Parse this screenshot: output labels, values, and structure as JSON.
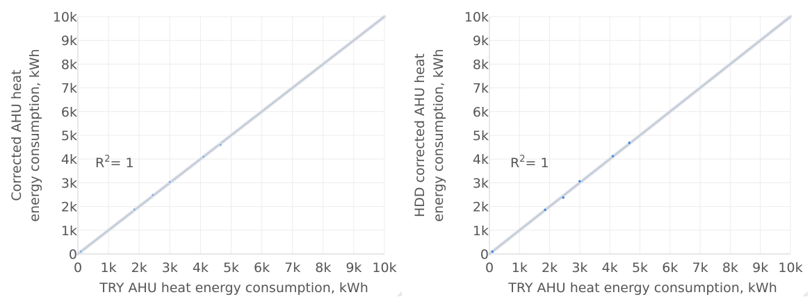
{
  "chart_data": [
    {
      "type": "scatter",
      "title": "",
      "xlabel": "TRY AHU heat energy consumption, kWh",
      "ylabel_lines": [
        "Corrected AHU heat",
        "energy consumption, kWh"
      ],
      "xlim": [
        0,
        10000
      ],
      "ylim": [
        0,
        10000
      ],
      "x_ticks": [
        "0",
        "1k",
        "2k",
        "3k",
        "4k",
        "5k",
        "6k",
        "7k",
        "8k",
        "9k",
        "10k"
      ],
      "y_ticks": [
        "0",
        "1k",
        "2k",
        "3k",
        "4k",
        "5k",
        "6k",
        "7k",
        "8k",
        "9k",
        "10k"
      ],
      "grid": true,
      "annotation": {
        "prefix": "R",
        "sup": "2",
        "suffix": "= 1"
      },
      "fit_line": {
        "x": [
          0,
          10000
        ],
        "y": [
          0,
          10000
        ]
      },
      "series": [
        {
          "points": [
            {
              "x": 100,
              "y": 100
            },
            {
              "x": 1850,
              "y": 1870
            },
            {
              "x": 2450,
              "y": 2480
            },
            {
              "x": 3000,
              "y": 3030
            },
            {
              "x": 4100,
              "y": 4100
            },
            {
              "x": 4650,
              "y": 4600
            }
          ],
          "color": "#8fb4e3"
        }
      ]
    },
    {
      "type": "scatter",
      "title": "",
      "xlabel": "TRY AHU heat energy consumption, kWh",
      "ylabel_lines": [
        "HDD corrected AHU heat",
        "energy consumption, kWh"
      ],
      "xlim": [
        0,
        10000
      ],
      "ylim": [
        0,
        10000
      ],
      "x_ticks": [
        "0",
        "1k",
        "2k",
        "3k",
        "4k",
        "5k",
        "6k",
        "7k",
        "8k",
        "9k",
        "10k"
      ],
      "y_ticks": [
        "0",
        "1k",
        "2k",
        "3k",
        "4k",
        "5k",
        "6k",
        "7k",
        "8k",
        "9k",
        "10k"
      ],
      "grid": true,
      "annotation": {
        "prefix": "R",
        "sup": "2",
        "suffix": "= 1"
      },
      "fit_line": {
        "x": [
          0,
          10000
        ],
        "y": [
          0,
          10000
        ]
      },
      "series": [
        {
          "points": [
            {
              "x": 100,
              "y": 100
            },
            {
              "x": 1850,
              "y": 1860
            },
            {
              "x": 2450,
              "y": 2380
            },
            {
              "x": 3000,
              "y": 3060
            },
            {
              "x": 4100,
              "y": 4120
            },
            {
              "x": 4650,
              "y": 4680
            }
          ],
          "color": "#4a86d8"
        }
      ]
    }
  ]
}
